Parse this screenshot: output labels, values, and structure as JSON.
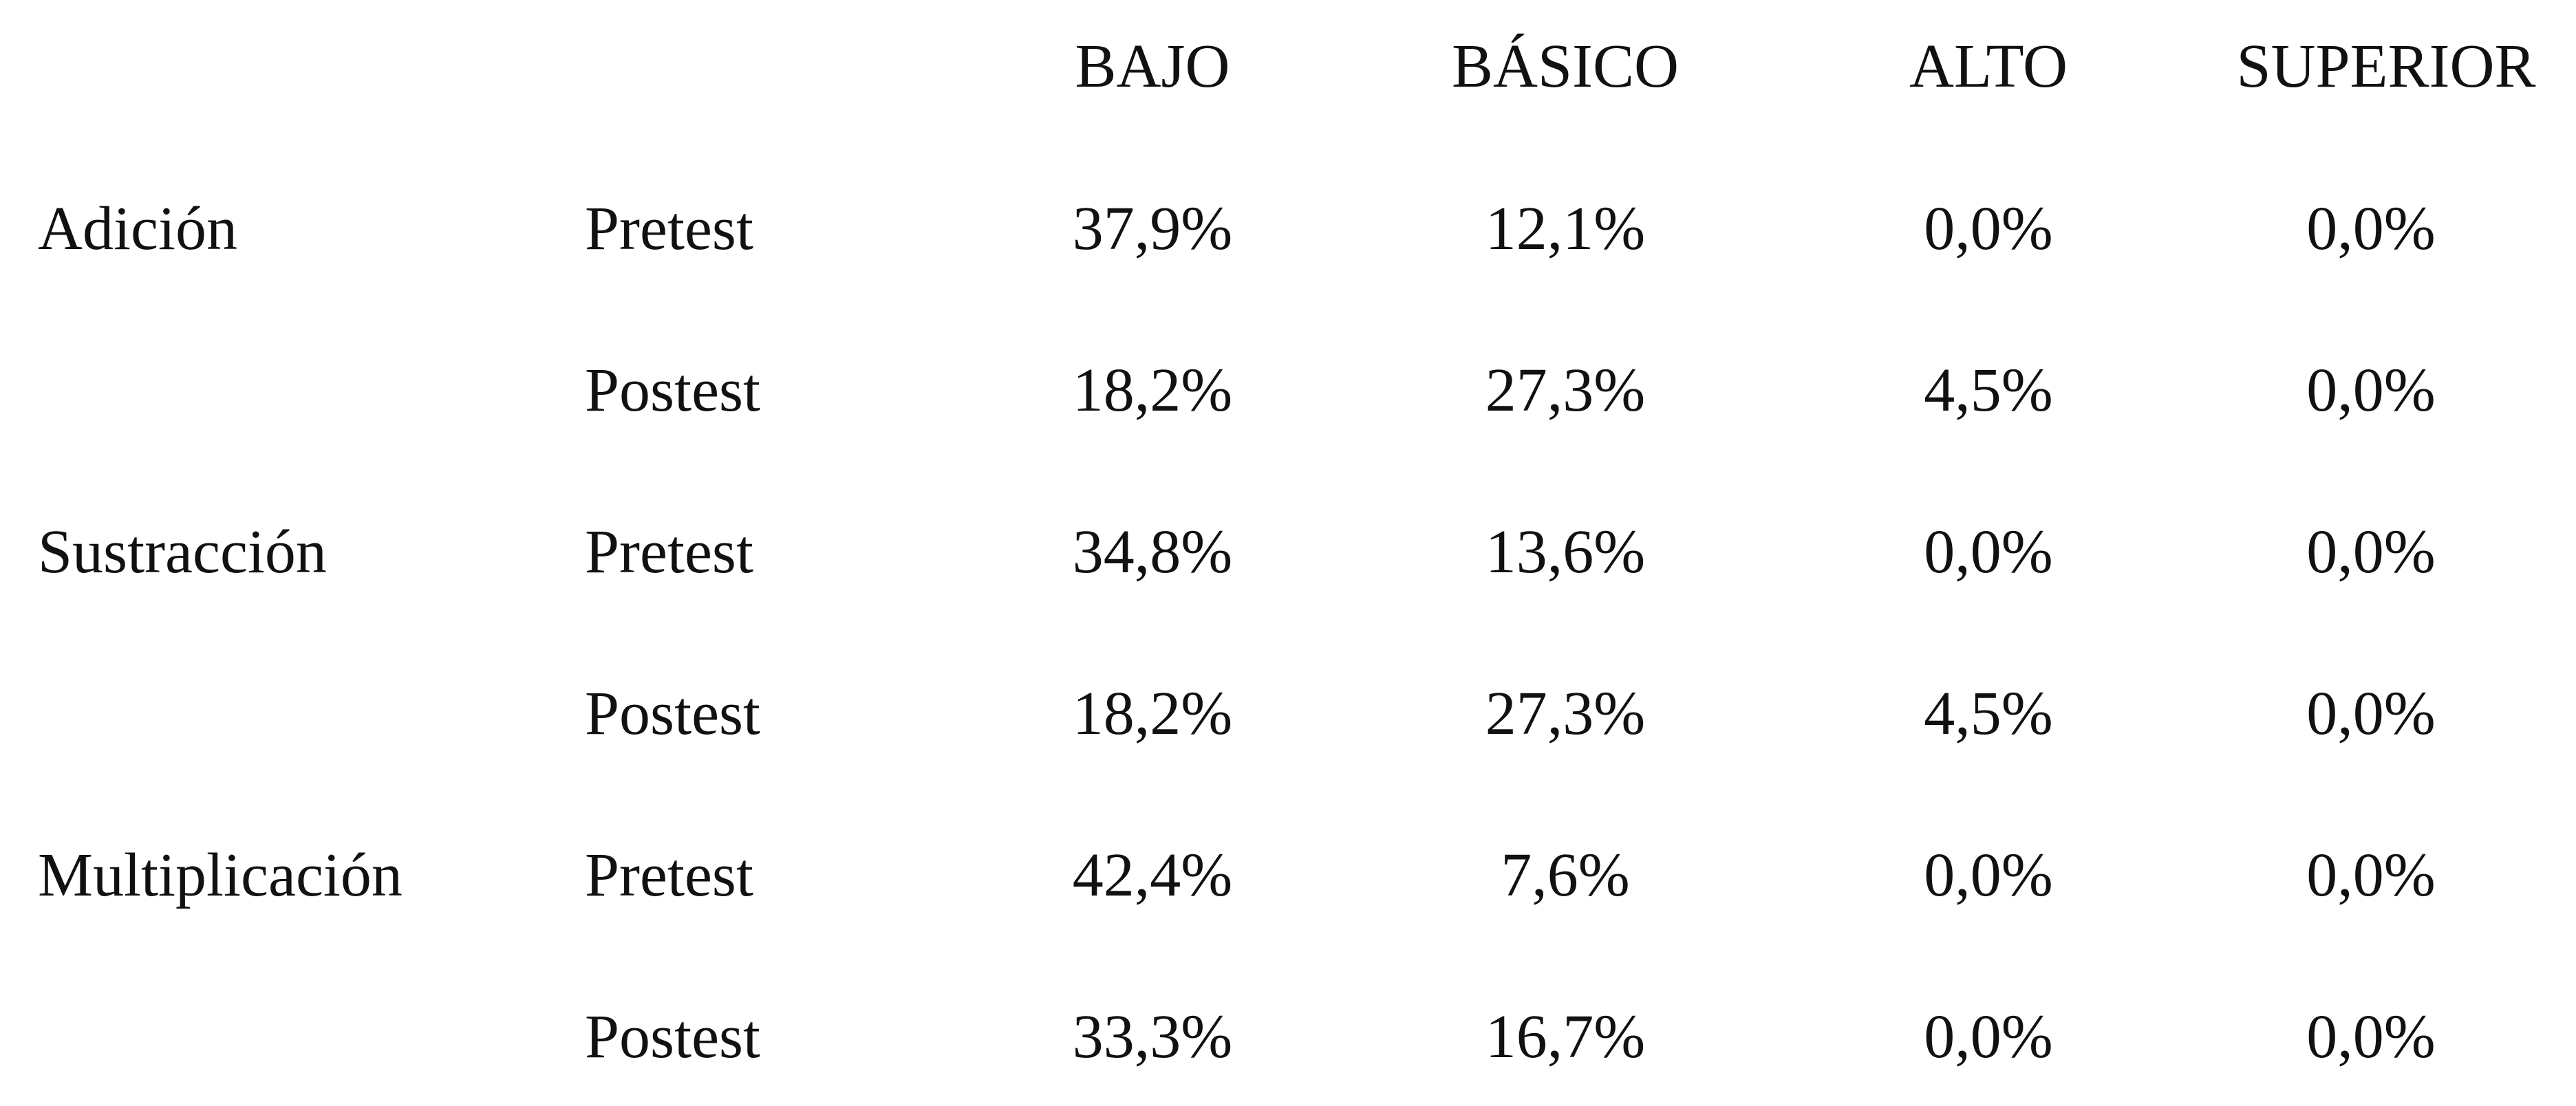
{
  "columns": [
    "BAJO",
    "BÁSICO",
    "ALTO",
    "SUPERIOR"
  ],
  "rows": [
    {
      "category": "Adición",
      "phase": "Pretest",
      "values": [
        "37,9%",
        "12,1%",
        "0,0%",
        "0,0%"
      ]
    },
    {
      "category": "",
      "phase": "Postest",
      "values": [
        "18,2%",
        "27,3%",
        "4,5%",
        "0,0%"
      ]
    },
    {
      "category": "Sustracción",
      "phase": "Pretest",
      "values": [
        "34,8%",
        "13,6%",
        "0,0%",
        "0,0%"
      ]
    },
    {
      "category": "",
      "phase": "Postest",
      "values": [
        "18,2%",
        "27,3%",
        "4,5%",
        "0,0%"
      ]
    },
    {
      "category": "Multiplicación",
      "phase": "Pretest",
      "values": [
        "42,4%",
        "7,6%",
        "0,0%",
        "0,0%"
      ]
    },
    {
      "category": "",
      "phase": "Postest",
      "values": [
        "33,3%",
        "16,7%",
        "0,0%",
        "0,0%"
      ]
    }
  ]
}
